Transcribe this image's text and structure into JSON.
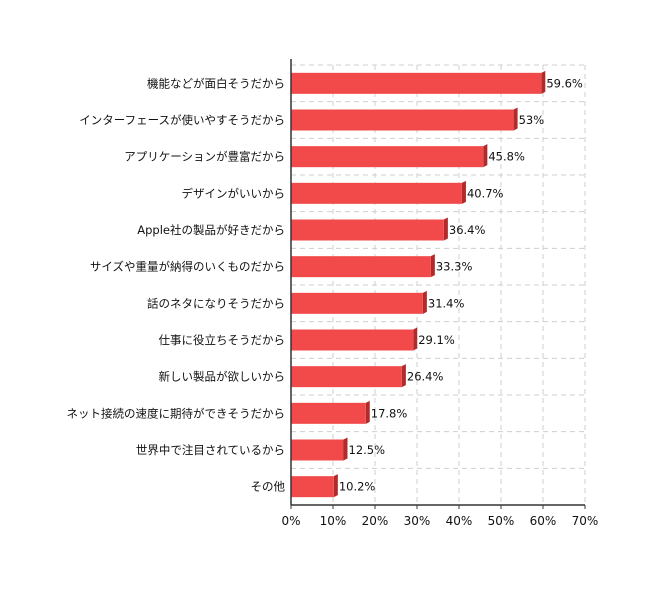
{
  "chart_data": {
    "type": "bar",
    "orientation": "horizontal",
    "categories": [
      "機能などが面白そうだから",
      "インターフェースが使いやすそうだから",
      "アプリケーションが豊富だから",
      "デザインがいいから",
      "Apple社の製品が好きだから",
      "サイズや重量が納得のいくものだから",
      "話のネタになりそうだから",
      "仕事に役立ちそうだから",
      "新しい製品が欲しいから",
      "ネット接続の速度に期待ができそうだから",
      "世界中で注目されているから",
      "その他"
    ],
    "values": [
      59.6,
      53,
      45.8,
      40.7,
      36.4,
      33.3,
      31.4,
      29.1,
      26.4,
      17.8,
      12.5,
      10.2
    ],
    "value_labels": [
      "59.6%",
      "53%",
      "45.8%",
      "40.7%",
      "36.4%",
      "33.3%",
      "31.4%",
      "29.1%",
      "26.4%",
      "17.8%",
      "12.5%",
      "10.2%"
    ],
    "xlim": [
      0,
      70
    ],
    "xticks": [
      0,
      10,
      20,
      30,
      40,
      50,
      60,
      70
    ],
    "xtick_labels": [
      "0%",
      "10%",
      "20%",
      "30%",
      "40%",
      "50%",
      "60%",
      "70%"
    ],
    "grid": true,
    "legend": "none",
    "colors": {
      "bar": "#f24a4a",
      "bar_shadow": "#b22a2a",
      "axis": "#333333",
      "grid": "#cfcfcf"
    }
  }
}
